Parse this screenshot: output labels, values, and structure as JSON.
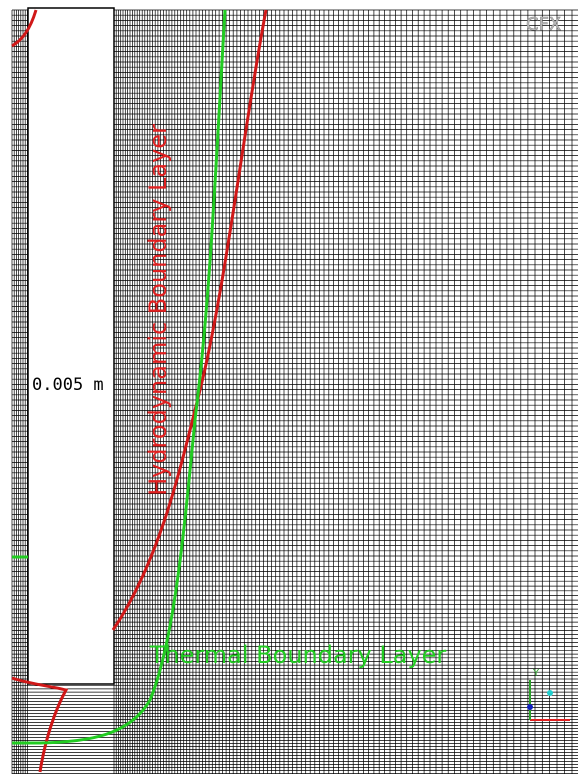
{
  "scale_label": "0.005 m",
  "labels": {
    "hydrodynamic": "Hydrodynamic Boundary Layer",
    "thermal": "Thermal Boundary Layer"
  },
  "logo": "CFX",
  "axis": {
    "y": "Y"
  }
}
